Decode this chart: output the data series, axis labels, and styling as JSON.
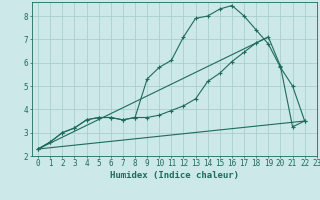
{
  "xlabel": "Humidex (Indice chaleur)",
  "xlim": [
    -0.5,
    23
  ],
  "ylim": [
    2,
    8.6
  ],
  "yticks": [
    2,
    3,
    4,
    5,
    6,
    7,
    8
  ],
  "xticks": [
    0,
    1,
    2,
    3,
    4,
    5,
    6,
    7,
    8,
    9,
    10,
    11,
    12,
    13,
    14,
    15,
    16,
    17,
    18,
    19,
    20,
    21,
    22,
    23
  ],
  "bg_color": "#cce8e8",
  "grid_color": "#aacece",
  "line_color": "#1e6b5e",
  "lines": [
    {
      "x": [
        0,
        1,
        2,
        3,
        4,
        5,
        6,
        7,
        8,
        9,
        10,
        11,
        12,
        13,
        14,
        15,
        16,
        17,
        18,
        19,
        20,
        21,
        22
      ],
      "y": [
        2.3,
        2.6,
        3.0,
        3.2,
        3.55,
        3.65,
        3.65,
        3.55,
        3.65,
        5.3,
        5.8,
        6.1,
        7.1,
        7.9,
        8.0,
        8.3,
        8.45,
        8.0,
        7.4,
        6.8,
        5.8,
        5.0,
        3.5
      ],
      "marker": true
    },
    {
      "x": [
        0,
        1,
        2,
        3,
        4,
        5,
        6,
        7,
        8,
        9,
        10,
        11,
        12,
        13,
        14,
        15,
        16,
        17,
        18,
        19,
        20,
        21,
        22
      ],
      "y": [
        2.3,
        2.6,
        3.0,
        3.2,
        3.55,
        3.65,
        3.65,
        3.55,
        3.65,
        3.65,
        3.75,
        3.95,
        4.15,
        4.45,
        5.2,
        5.55,
        6.05,
        6.45,
        6.85,
        7.1,
        5.85,
        3.25,
        3.5
      ],
      "marker": true
    },
    {
      "x": [
        0,
        22
      ],
      "y": [
        2.3,
        3.5
      ],
      "marker": false
    },
    {
      "x": [
        0,
        19
      ],
      "y": [
        2.3,
        7.1
      ],
      "marker": false
    }
  ]
}
